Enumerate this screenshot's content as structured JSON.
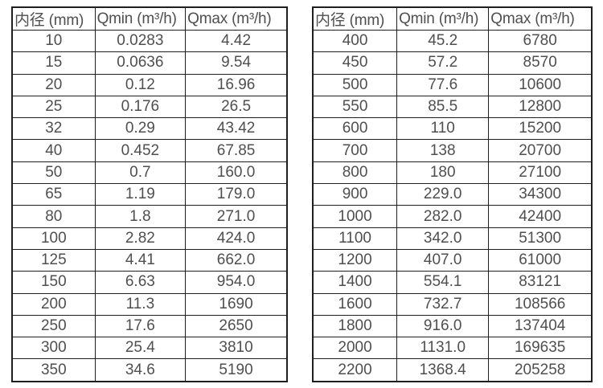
{
  "colors": {
    "background": "#ffffff",
    "border": "#1f1f1f",
    "text": "#4f4f4f"
  },
  "tables": [
    {
      "name": "flow-rates-small-diameters",
      "columns": [
        "内径 (mm)",
        "Qmin (m³/h)",
        "Qmax (m³/h)"
      ],
      "rows": [
        [
          "10",
          "0.0283",
          "4.42"
        ],
        [
          "15",
          "0.0636",
          "9.54"
        ],
        [
          "20",
          "0.12",
          "16.96"
        ],
        [
          "25",
          "0.176",
          "26.5"
        ],
        [
          "32",
          "0.29",
          "43.42"
        ],
        [
          "40",
          "0.452",
          "67.85"
        ],
        [
          "50",
          "0.7",
          "160.0"
        ],
        [
          "65",
          "1.19",
          "179.0"
        ],
        [
          "80",
          "1.8",
          "271.0"
        ],
        [
          "100",
          "2.82",
          "424.0"
        ],
        [
          "125",
          "4.41",
          "662.0"
        ],
        [
          "150",
          "6.63",
          "954.0"
        ],
        [
          "200",
          "11.3",
          "1690"
        ],
        [
          "250",
          "17.6",
          "2650"
        ],
        [
          "300",
          "25.4",
          "3810"
        ],
        [
          "350",
          "34.6",
          "5190"
        ]
      ]
    },
    {
      "name": "flow-rates-large-diameters",
      "columns": [
        "内径 (mm)",
        "Qmin (m³/h)",
        "Qmax (m³/h)"
      ],
      "rows": [
        [
          "400",
          "45.2",
          "6780"
        ],
        [
          "450",
          "57.2",
          "8570"
        ],
        [
          "500",
          "77.6",
          "10600"
        ],
        [
          "550",
          "85.5",
          "12800"
        ],
        [
          "600",
          "110",
          "15200"
        ],
        [
          "700",
          "138",
          "20700"
        ],
        [
          "800",
          "180",
          "27100"
        ],
        [
          "900",
          "229.0",
          "34300"
        ],
        [
          "1000",
          "282.0",
          "42400"
        ],
        [
          "1100",
          "342.0",
          "51300"
        ],
        [
          "1200",
          "407.0",
          "61000"
        ],
        [
          "1400",
          "554.1",
          "83121"
        ],
        [
          "1600",
          "732.7",
          "108566"
        ],
        [
          "1800",
          "916.0",
          "137404"
        ],
        [
          "2000",
          "1131.0",
          "169635"
        ],
        [
          "2200",
          "1368.4",
          "205258"
        ]
      ]
    }
  ]
}
